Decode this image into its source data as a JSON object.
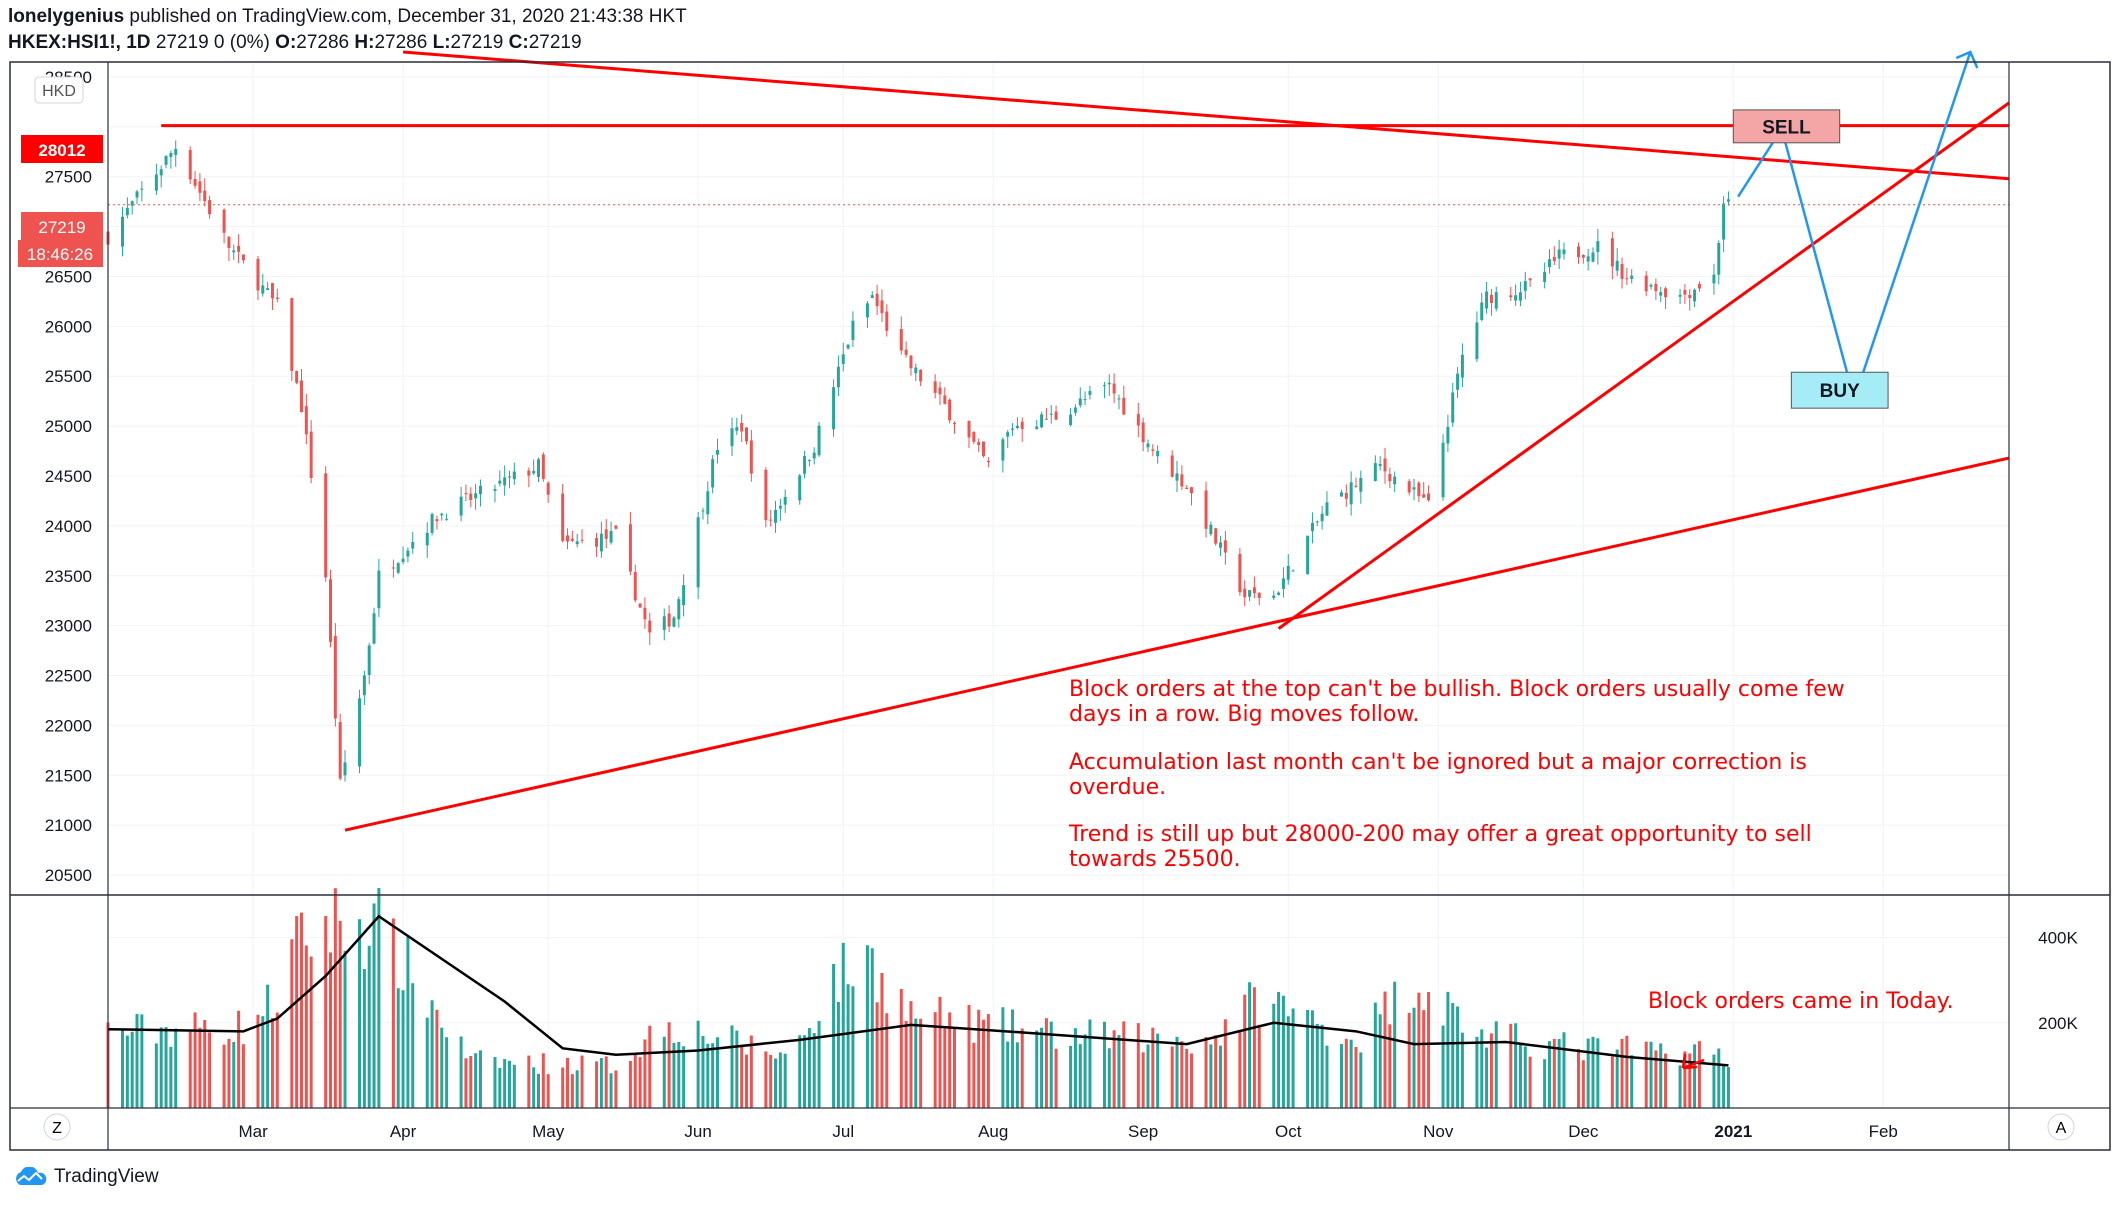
{
  "header": {
    "author": "lonelygenius",
    "published_text": "published on TradingView.com, December 31, 2020 21:43:38 HKT",
    "symbol_line": "HKEX:HSI1!, 1D",
    "change": "27219 0 (0%)",
    "ohlc": {
      "o_label": "O:",
      "o": "27286",
      "h_label": "H:",
      "h": "27286",
      "l_label": "L:",
      "l": "27219",
      "c_label": "C:",
      "c": "27219"
    }
  },
  "colors": {
    "up": "#26a69a",
    "down": "#ef5350",
    "trend": "#ff0000",
    "arrow": "#2196f3",
    "ma": "#000000"
  },
  "footer": {
    "brand": "TradingView",
    "left_button": "Z",
    "right_button": "A"
  },
  "chart_data": {
    "type": "candlestick",
    "currency": "HKD",
    "ylim": [
      20300,
      28650
    ],
    "yticks": [
      20500,
      21000,
      21500,
      22000,
      22500,
      23000,
      23500,
      24000,
      24500,
      25000,
      25500,
      26000,
      26500,
      27000,
      27500,
      28000,
      28500
    ],
    "ytick_labels": [
      "20500",
      "21000",
      "21500",
      "22000",
      "22500",
      "23000",
      "23500",
      "24000",
      "24500",
      "25000",
      "25500",
      "26000",
      "26500",
      "",
      "27500",
      "",
      "28500"
    ],
    "price_labels": {
      "level": "28012",
      "last": "27219",
      "countdown": "18:46:26"
    },
    "x_months": [
      "Mar",
      "Apr",
      "May",
      "Jun",
      "Jul",
      "Aug",
      "Sep",
      "Oct",
      "Nov",
      "Dec",
      "2021",
      "Feb"
    ],
    "anchors": [
      [
        "2020-01-31",
        26900
      ],
      [
        "2020-02-14",
        27800
      ],
      [
        "2020-02-25",
        26800
      ],
      [
        "2020-03-06",
        26200
      ],
      [
        "2020-03-11",
        25200
      ],
      [
        "2020-03-16",
        23500
      ],
      [
        "2020-03-19",
        21400
      ],
      [
        "2020-03-24",
        22500
      ],
      [
        "2020-03-27",
        23500
      ],
      [
        "2020-04-08",
        24100
      ],
      [
        "2020-04-16",
        24300
      ],
      [
        "2020-04-29",
        24600
      ],
      [
        "2020-05-04",
        23800
      ],
      [
        "2020-05-15",
        23900
      ],
      [
        "2020-05-22",
        22900
      ],
      [
        "2020-05-27",
        23100
      ],
      [
        "2020-06-05",
        24800
      ],
      [
        "2020-06-10",
        25000
      ],
      [
        "2020-06-15",
        24000
      ],
      [
        "2020-06-25",
        24800
      ],
      [
        "2020-07-03",
        26000
      ],
      [
        "2020-07-07",
        26300
      ],
      [
        "2020-07-13",
        25700
      ],
      [
        "2020-07-22",
        25200
      ],
      [
        "2020-07-31",
        24600
      ],
      [
        "2020-08-05",
        25000
      ],
      [
        "2020-08-14",
        25100
      ],
      [
        "2020-08-25",
        25400
      ],
      [
        "2020-09-04",
        24700
      ],
      [
        "2020-09-10",
        24400
      ],
      [
        "2020-09-22",
        23300
      ],
      [
        "2020-09-28",
        23300
      ],
      [
        "2020-10-09",
        24200
      ],
      [
        "2020-10-20",
        24600
      ],
      [
        "2020-10-30",
        24200
      ],
      [
        "2020-11-06",
        25700
      ],
      [
        "2020-11-11",
        26300
      ],
      [
        "2020-11-20",
        26400
      ],
      [
        "2020-11-26",
        26700
      ],
      [
        "2020-12-04",
        26800
      ],
      [
        "2020-12-10",
        26500
      ],
      [
        "2020-12-21",
        26300
      ],
      [
        "2020-12-28",
        26500
      ],
      [
        "2020-12-30",
        27250
      ],
      [
        "2020-12-31",
        27219
      ]
    ],
    "volume": {
      "yticks": [
        200000,
        400000
      ],
      "ytick_labels": [
        "200K",
        "400K"
      ],
      "ylim": [
        0,
        500000
      ],
      "anchors": [
        [
          "2020-01-31",
          180000
        ],
        [
          "2020-02-28",
          190000
        ],
        [
          "2020-03-06",
          260000
        ],
        [
          "2020-03-09",
          360000
        ],
        [
          "2020-03-13",
          410000
        ],
        [
          "2020-03-19",
          440000
        ],
        [
          "2020-03-27",
          420000
        ],
        [
          "2020-04-15",
          110000
        ],
        [
          "2020-05-15",
          100000
        ],
        [
          "2020-05-25",
          200000
        ],
        [
          "2020-06-20",
          120000
        ],
        [
          "2020-06-29",
          300000
        ],
        [
          "2020-07-06",
          350000
        ],
        [
          "2020-07-15",
          220000
        ],
        [
          "2020-08-15",
          170000
        ],
        [
          "2020-09-15",
          160000
        ],
        [
          "2020-09-25",
          260000
        ],
        [
          "2020-10-15",
          160000
        ],
        [
          "2020-10-27",
          300000
        ],
        [
          "2020-11-10",
          170000
        ],
        [
          "2020-12-01",
          140000
        ],
        [
          "2020-12-30",
          130000
        ],
        [
          "2020-12-31",
          100000
        ]
      ],
      "ma_anchors": [
        [
          "2020-01-31",
          185000
        ],
        [
          "2020-02-28",
          180000
        ],
        [
          "2020-03-06",
          210000
        ],
        [
          "2020-03-16",
          310000
        ],
        [
          "2020-03-27",
          450000
        ],
        [
          "2020-04-22",
          250000
        ],
        [
          "2020-05-04",
          140000
        ],
        [
          "2020-05-15",
          125000
        ],
        [
          "2020-06-01",
          135000
        ],
        [
          "2020-06-22",
          160000
        ],
        [
          "2020-07-15",
          195000
        ],
        [
          "2020-08-10",
          175000
        ],
        [
          "2020-09-10",
          150000
        ],
        [
          "2020-09-28",
          200000
        ],
        [
          "2020-10-15",
          180000
        ],
        [
          "2020-10-27",
          150000
        ],
        [
          "2020-11-15",
          155000
        ],
        [
          "2020-12-10",
          120000
        ],
        [
          "2020-12-31",
          100000
        ]
      ]
    },
    "trendlines": [
      {
        "from": [
          "2020-03-20",
          20950
        ],
        "to": [
          "2021-02-27",
          24680
        ]
      },
      {
        "from": [
          "2020-09-29",
          22970
        ],
        "to": [
          "2021-02-27",
          28240
        ]
      },
      {
        "from": [
          "2020-04-01",
          28750
        ],
        "to": [
          "2021-02-27",
          27480
        ]
      },
      {
        "from": [
          "2020-02-11",
          28012
        ],
        "to": [
          "2021-02-27",
          28012
        ]
      }
    ],
    "projection_path": [
      [
        "2021-01-02",
        27300
      ],
      [
        "2021-01-11",
        27980
      ],
      [
        "2021-01-26",
        25270
      ],
      [
        "2021-02-19",
        28750
      ]
    ],
    "boxes": [
      {
        "label": "SELL",
        "from": [
          "2021-01-01",
          28170
        ],
        "to": [
          "2021-01-23",
          27840
        ],
        "fill": "#f4a6a6"
      },
      {
        "label": "BUY",
        "from": [
          "2021-01-13",
          25540
        ],
        "to": [
          "2021-02-02",
          25180
        ],
        "fill": "#a6ecf6"
      }
    ],
    "annotations": [
      "Block orders at the top can't be bullish. Block orders usually come few",
      "days in a row. Big moves follow.",
      "Accumulation last month can't be ignored but a major correction is",
      "overdue.",
      "Trend is still up but 28000-200 may offer a great opportunity to sell",
      "towards 25500.",
      "Block orders came in Today."
    ]
  }
}
